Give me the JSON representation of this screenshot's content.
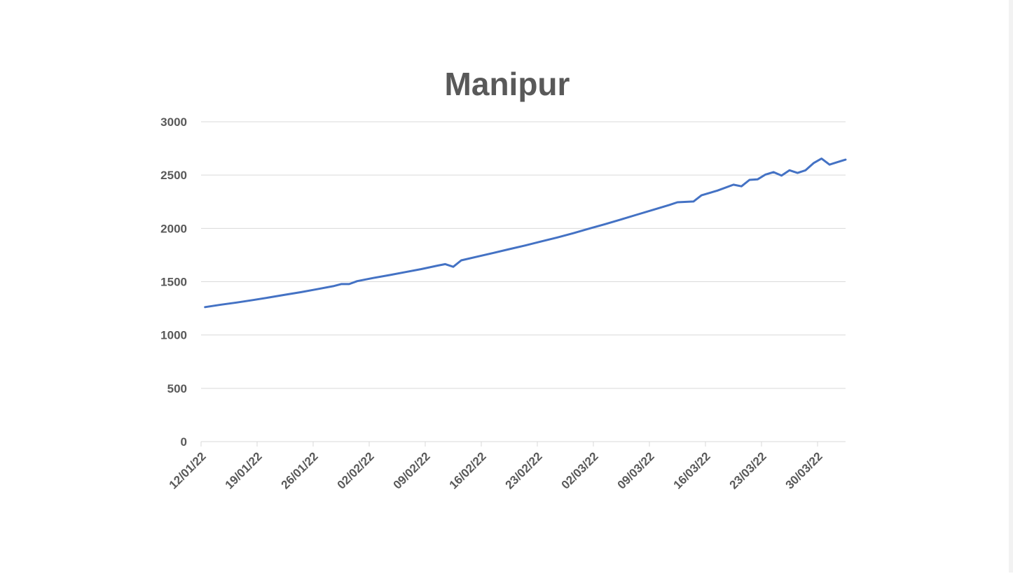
{
  "chart_data": {
    "type": "line",
    "title": "Manipur",
    "xlabel": "",
    "ylabel": "",
    "x_start": "12/01/22",
    "x_end": "02/04/22",
    "x_tick_labels": [
      "12/01/22",
      "19/01/22",
      "26/01/22",
      "02/02/22",
      "09/02/22",
      "16/02/22",
      "23/02/22",
      "02/03/22",
      "09/03/22",
      "16/03/22",
      "23/03/22",
      "30/03/22"
    ],
    "y_ticks": [
      0,
      500,
      1000,
      1500,
      2000,
      2500,
      3000
    ],
    "ylim": [
      0,
      3000
    ],
    "grid": true,
    "legend": "none",
    "series": [
      {
        "color": "#4472c4",
        "points": [
          [
            "12/01/22",
            1262
          ],
          [
            "14/01/22",
            1285
          ],
          [
            "16/01/22",
            1305
          ],
          [
            "18/01/22",
            1328
          ],
          [
            "20/01/22",
            1352
          ],
          [
            "22/01/22",
            1378
          ],
          [
            "24/01/22",
            1402
          ],
          [
            "26/01/22",
            1430
          ],
          [
            "28/01/22",
            1458
          ],
          [
            "29/01/22",
            1478
          ],
          [
            "30/01/22",
            1478
          ],
          [
            "31/01/22",
            1505
          ],
          [
            "02/02/22",
            1535
          ],
          [
            "04/02/22",
            1562
          ],
          [
            "06/02/22",
            1590
          ],
          [
            "08/02/22",
            1618
          ],
          [
            "10/02/22",
            1650
          ],
          [
            "11/02/22",
            1665
          ],
          [
            "12/02/22",
            1640
          ],
          [
            "13/02/22",
            1700
          ],
          [
            "15/02/22",
            1735
          ],
          [
            "17/02/22",
            1770
          ],
          [
            "19/02/22",
            1805
          ],
          [
            "21/02/22",
            1840
          ],
          [
            "23/02/22",
            1878
          ],
          [
            "25/02/22",
            1915
          ],
          [
            "27/02/22",
            1955
          ],
          [
            "01/03/22",
            1998
          ],
          [
            "03/03/22",
            2040
          ],
          [
            "05/03/22",
            2085
          ],
          [
            "07/03/22",
            2130
          ],
          [
            "09/03/22",
            2175
          ],
          [
            "11/03/22",
            2220
          ],
          [
            "12/03/22",
            2245
          ],
          [
            "14/03/22",
            2252
          ],
          [
            "15/03/22",
            2310
          ],
          [
            "17/03/22",
            2355
          ],
          [
            "19/03/22",
            2410
          ],
          [
            "20/03/22",
            2395
          ],
          [
            "21/03/22",
            2455
          ],
          [
            "22/03/22",
            2460
          ],
          [
            "23/03/22",
            2505
          ],
          [
            "24/03/22",
            2528
          ],
          [
            "25/03/22",
            2495
          ],
          [
            "26/03/22",
            2545
          ],
          [
            "27/03/22",
            2520
          ],
          [
            "28/03/22",
            2545
          ],
          [
            "29/03/22",
            2612
          ],
          [
            "30/03/22",
            2655
          ],
          [
            "31/03/22",
            2598
          ],
          [
            "01/04/22",
            2622
          ],
          [
            "02/04/22",
            2645
          ]
        ]
      }
    ]
  }
}
